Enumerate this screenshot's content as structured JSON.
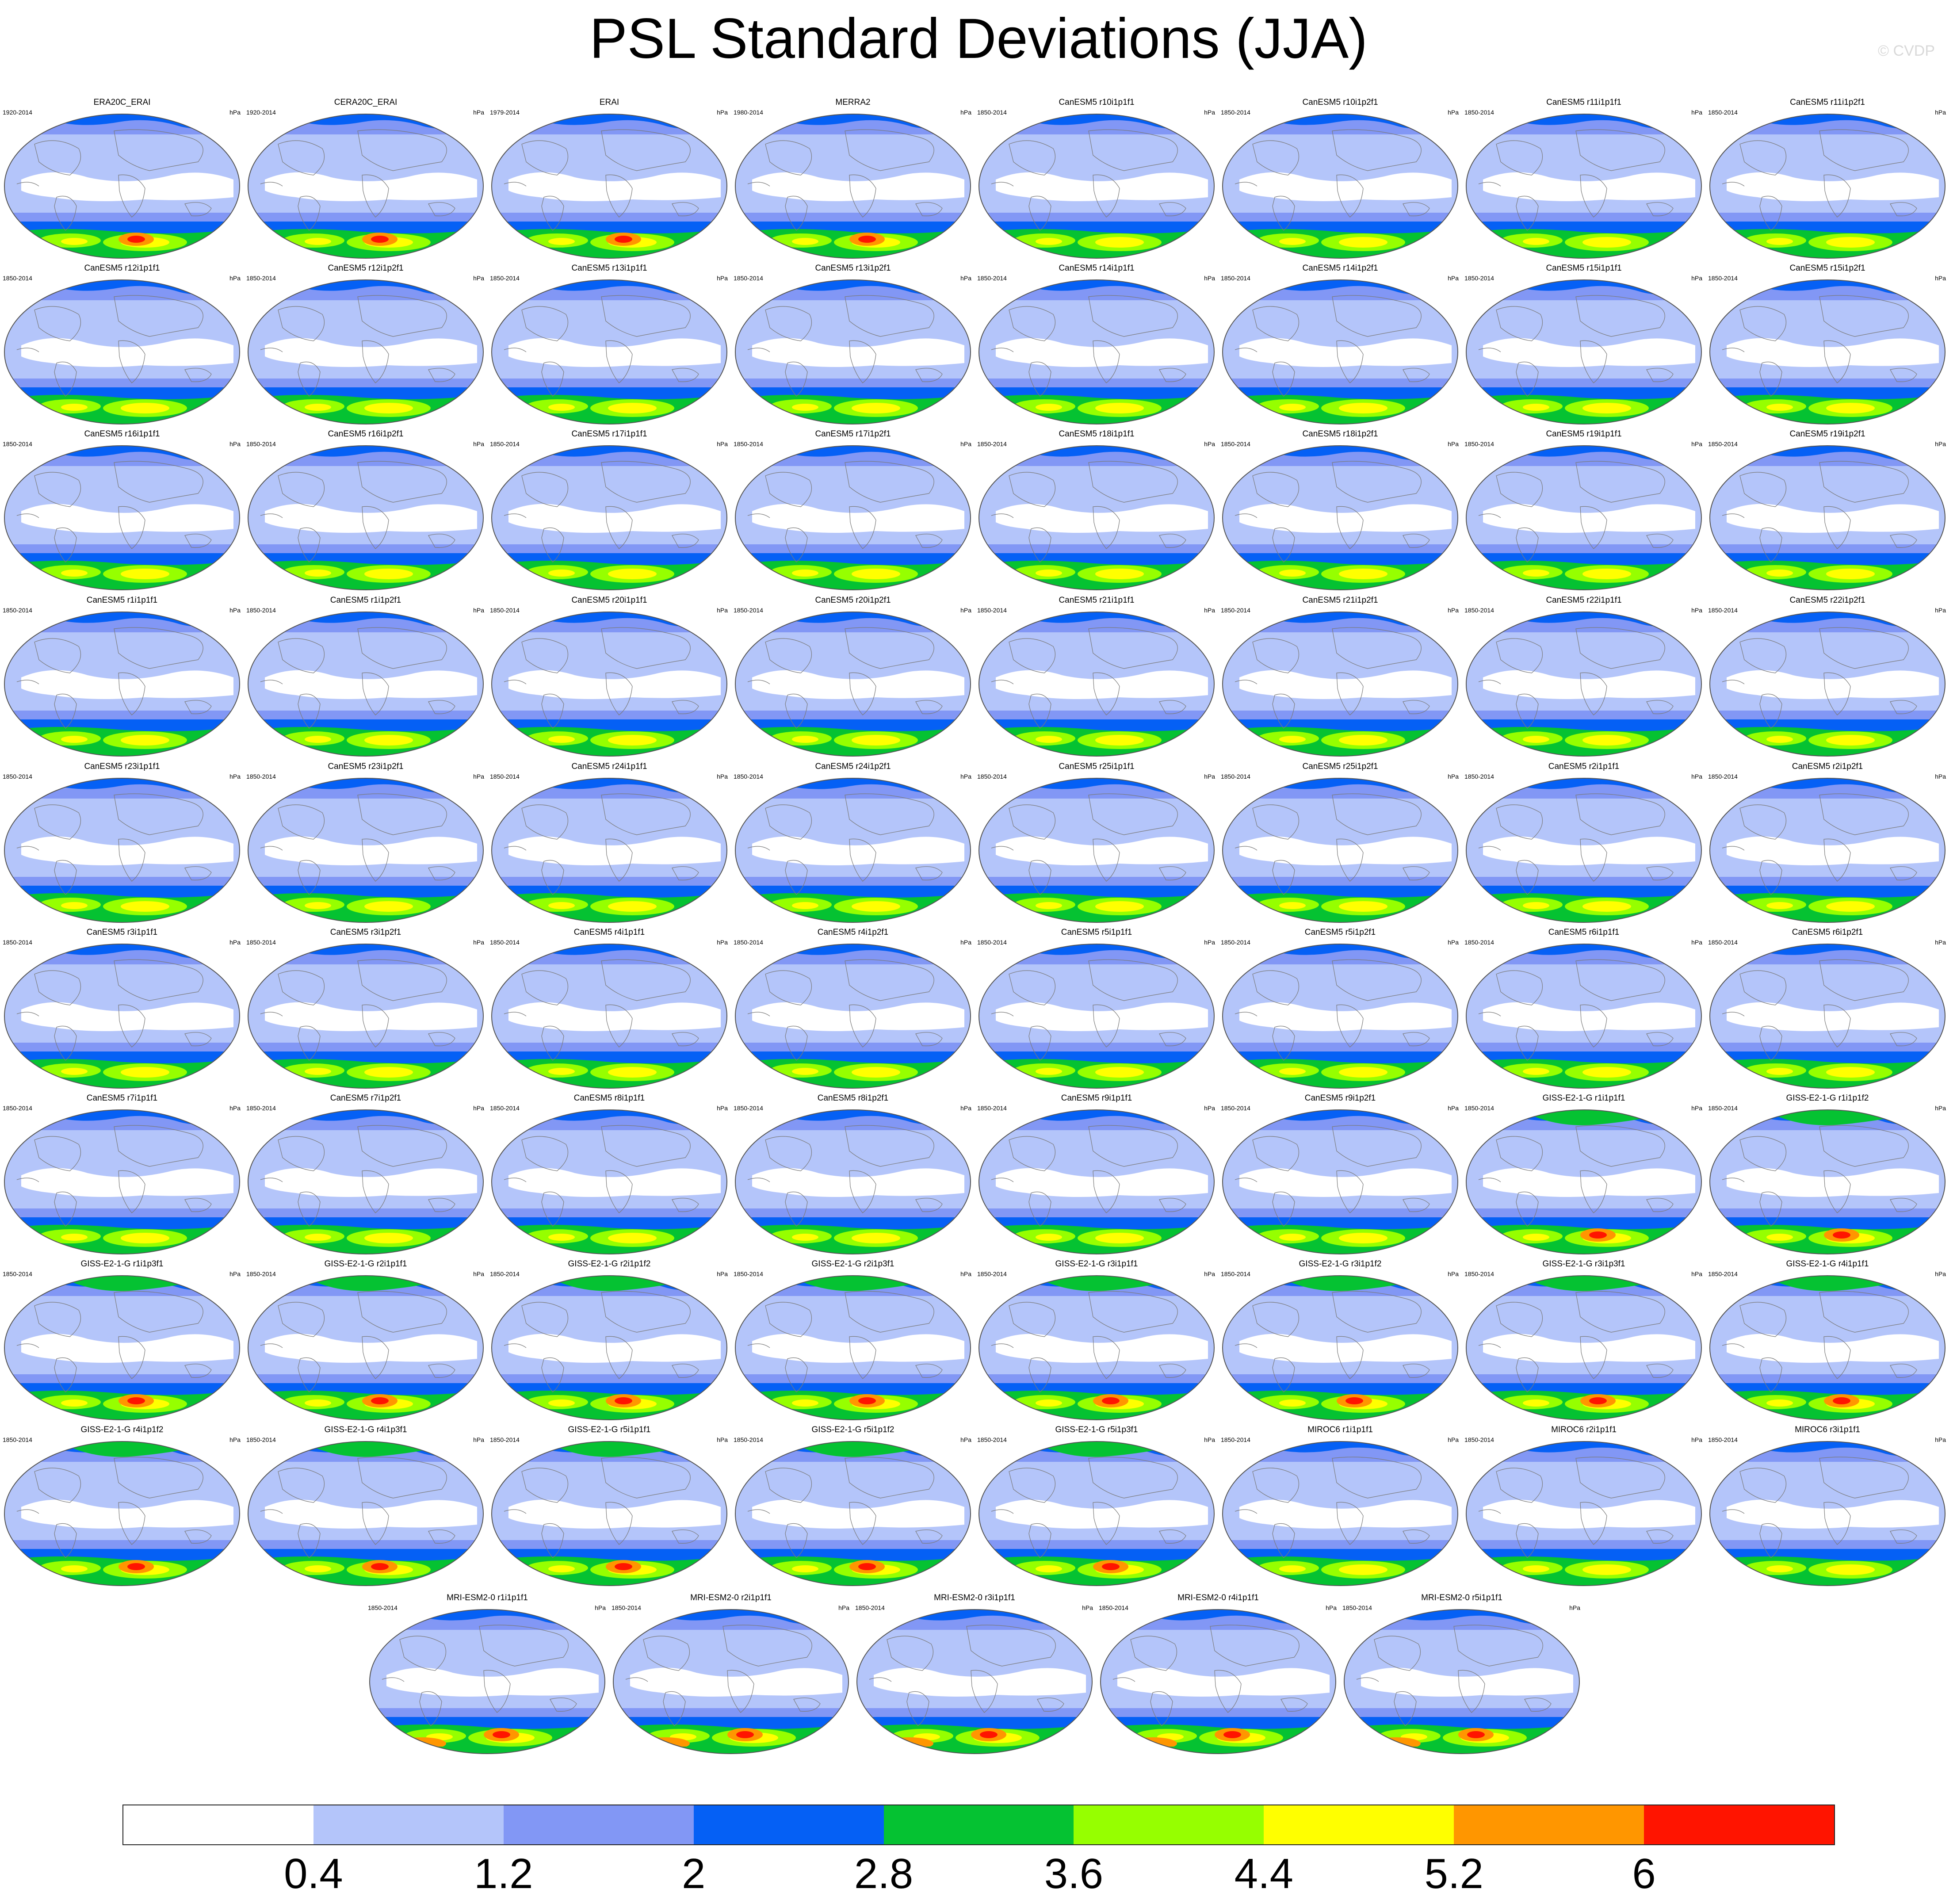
{
  "title": "PSL Standard Deviations (JJA)",
  "copyright": "© CVDP",
  "units": "hPa",
  "panels": [
    {
      "title": "ERA20C_ERAI",
      "years": "1920-2014"
    },
    {
      "title": "CERA20C_ERAI",
      "years": "1920-2014"
    },
    {
      "title": "ERAI",
      "years": "1979-2014"
    },
    {
      "title": "MERRA2",
      "years": "1980-2014"
    },
    {
      "title": "CanESM5 r10i1p1f1",
      "years": "1850-2014"
    },
    {
      "title": "CanESM5 r10i1p2f1",
      "years": "1850-2014"
    },
    {
      "title": "CanESM5 r11i1p1f1",
      "years": "1850-2014"
    },
    {
      "title": "CanESM5 r11i1p2f1",
      "years": "1850-2014"
    },
    {
      "title": "CanESM5 r12i1p1f1",
      "years": "1850-2014"
    },
    {
      "title": "CanESM5 r12i1p2f1",
      "years": "1850-2014"
    },
    {
      "title": "CanESM5 r13i1p1f1",
      "years": "1850-2014"
    },
    {
      "title": "CanESM5 r13i1p2f1",
      "years": "1850-2014"
    },
    {
      "title": "CanESM5 r14i1p1f1",
      "years": "1850-2014"
    },
    {
      "title": "CanESM5 r14i1p2f1",
      "years": "1850-2014"
    },
    {
      "title": "CanESM5 r15i1p1f1",
      "years": "1850-2014"
    },
    {
      "title": "CanESM5 r15i1p2f1",
      "years": "1850-2014"
    },
    {
      "title": "CanESM5 r16i1p1f1",
      "years": "1850-2014"
    },
    {
      "title": "CanESM5 r16i1p2f1",
      "years": "1850-2014"
    },
    {
      "title": "CanESM5 r17i1p1f1",
      "years": "1850-2014"
    },
    {
      "title": "CanESM5 r17i1p2f1",
      "years": "1850-2014"
    },
    {
      "title": "CanESM5 r18i1p1f1",
      "years": "1850-2014"
    },
    {
      "title": "CanESM5 r18i1p2f1",
      "years": "1850-2014"
    },
    {
      "title": "CanESM5 r19i1p1f1",
      "years": "1850-2014"
    },
    {
      "title": "CanESM5 r19i1p2f1",
      "years": "1850-2014"
    },
    {
      "title": "CanESM5 r1i1p1f1",
      "years": "1850-2014"
    },
    {
      "title": "CanESM5 r1i1p2f1",
      "years": "1850-2014"
    },
    {
      "title": "CanESM5 r20i1p1f1",
      "years": "1850-2014"
    },
    {
      "title": "CanESM5 r20i1p2f1",
      "years": "1850-2014"
    },
    {
      "title": "CanESM5 r21i1p1f1",
      "years": "1850-2014"
    },
    {
      "title": "CanESM5 r21i1p2f1",
      "years": "1850-2014"
    },
    {
      "title": "CanESM5 r22i1p1f1",
      "years": "1850-2014"
    },
    {
      "title": "CanESM5 r22i1p2f1",
      "years": "1850-2014"
    },
    {
      "title": "CanESM5 r23i1p1f1",
      "years": "1850-2014"
    },
    {
      "title": "CanESM5 r23i1p2f1",
      "years": "1850-2014"
    },
    {
      "title": "CanESM5 r24i1p1f1",
      "years": "1850-2014"
    },
    {
      "title": "CanESM5 r24i1p2f1",
      "years": "1850-2014"
    },
    {
      "title": "CanESM5 r25i1p1f1",
      "years": "1850-2014"
    },
    {
      "title": "CanESM5 r25i1p2f1",
      "years": "1850-2014"
    },
    {
      "title": "CanESM5 r2i1p1f1",
      "years": "1850-2014"
    },
    {
      "title": "CanESM5 r2i1p2f1",
      "years": "1850-2014"
    },
    {
      "title": "CanESM5 r3i1p1f1",
      "years": "1850-2014"
    },
    {
      "title": "CanESM5 r3i1p2f1",
      "years": "1850-2014"
    },
    {
      "title": "CanESM5 r4i1p1f1",
      "years": "1850-2014"
    },
    {
      "title": "CanESM5 r4i1p2f1",
      "years": "1850-2014"
    },
    {
      "title": "CanESM5 r5i1p1f1",
      "years": "1850-2014"
    },
    {
      "title": "CanESM5 r5i1p2f1",
      "years": "1850-2014"
    },
    {
      "title": "CanESM5 r6i1p1f1",
      "years": "1850-2014"
    },
    {
      "title": "CanESM5 r6i1p2f1",
      "years": "1850-2014"
    },
    {
      "title": "CanESM5 r7i1p1f1",
      "years": "1850-2014"
    },
    {
      "title": "CanESM5 r7i1p2f1",
      "years": "1850-2014"
    },
    {
      "title": "CanESM5 r8i1p1f1",
      "years": "1850-2014"
    },
    {
      "title": "CanESM5 r8i1p2f1",
      "years": "1850-2014"
    },
    {
      "title": "CanESM5 r9i1p1f1",
      "years": "1850-2014"
    },
    {
      "title": "CanESM5 r9i1p2f1",
      "years": "1850-2014"
    },
    {
      "title": "GISS-E2-1-G r1i1p1f1",
      "years": "1850-2014"
    },
    {
      "title": "GISS-E2-1-G r1i1p1f2",
      "years": "1850-2014"
    },
    {
      "title": "GISS-E2-1-G r1i1p3f1",
      "years": "1850-2014"
    },
    {
      "title": "GISS-E2-1-G r2i1p1f1",
      "years": "1850-2014"
    },
    {
      "title": "GISS-E2-1-G r2i1p1f2",
      "years": "1850-2014"
    },
    {
      "title": "GISS-E2-1-G r2i1p3f1",
      "years": "1850-2014"
    },
    {
      "title": "GISS-E2-1-G r3i1p1f1",
      "years": "1850-2014"
    },
    {
      "title": "GISS-E2-1-G r3i1p1f2",
      "years": "1850-2014"
    },
    {
      "title": "GISS-E2-1-G r3i1p3f1",
      "years": "1850-2014"
    },
    {
      "title": "GISS-E2-1-G r4i1p1f1",
      "years": "1850-2014"
    },
    {
      "title": "GISS-E2-1-G r4i1p1f2",
      "years": "1850-2014"
    },
    {
      "title": "GISS-E2-1-G r4i1p3f1",
      "years": "1850-2014"
    },
    {
      "title": "GISS-E2-1-G r5i1p1f1",
      "years": "1850-2014"
    },
    {
      "title": "GISS-E2-1-G r5i1p1f2",
      "years": "1850-2014"
    },
    {
      "title": "GISS-E2-1-G r5i1p3f1",
      "years": "1850-2014"
    },
    {
      "title": "MIROC6 r1i1p1f1",
      "years": "1850-2014"
    },
    {
      "title": "MIROC6 r2i1p1f1",
      "years": "1850-2014"
    },
    {
      "title": "MIROC6 r3i1p1f1",
      "years": "1850-2014"
    },
    {
      "title": "MRI-ESM2-0 r1i1p1f1",
      "years": "1850-2014"
    },
    {
      "title": "MRI-ESM2-0 r2i1p1f1",
      "years": "1850-2014"
    },
    {
      "title": "MRI-ESM2-0 r3i1p1f1",
      "years": "1850-2014"
    },
    {
      "title": "MRI-ESM2-0 r4i1p1f1",
      "years": "1850-2014"
    },
    {
      "title": "MRI-ESM2-0 r5i1p1f1",
      "years": "1850-2014"
    }
  ],
  "colorbar": {
    "labels": [
      "0.4",
      "1.2",
      "2",
      "2.8",
      "3.6",
      "4.4",
      "5.2",
      "6"
    ],
    "colors": [
      "#ffffff",
      "#b4c5fa",
      "#8297f5",
      "#0560f5",
      "#05c232",
      "#96ff00",
      "#ffff00",
      "#ff9600",
      "#ff1400"
    ]
  },
  "map_colors": {
    "white": "#ffffff",
    "light_blue": "#b4c5fa",
    "mid_blue": "#8297f5",
    "blue": "#0560f5",
    "green": "#05c232",
    "lime": "#96ff00",
    "yellow": "#ffff00",
    "orange": "#ff9600",
    "red": "#ff1400",
    "coastline": "#7a7a7a"
  }
}
